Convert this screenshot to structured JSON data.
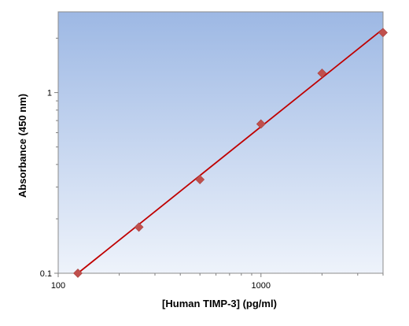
{
  "chart_data": {
    "type": "scatter",
    "title": "",
    "xlabel": "[Human TIMP-3] (pg/ml)",
    "ylabel": "Absorbance (450 nm)",
    "x_scale": "log",
    "y_scale": "log",
    "xlim": [
      100,
      4000
    ],
    "ylim": [
      0.1,
      2.8
    ],
    "x_ticks": [
      {
        "value": 100,
        "label": "100"
      },
      {
        "value": 1000,
        "label": "1000"
      }
    ],
    "y_ticks": [
      {
        "value": 0.1,
        "label": "0.1"
      },
      {
        "value": 1,
        "label": "1"
      }
    ],
    "grid": false,
    "legend": "none",
    "series": [
      {
        "marker": "diamond",
        "color": "#c0504d",
        "x": [
          125,
          250,
          500,
          1000,
          2000,
          4000
        ],
        "y": [
          0.1,
          0.18,
          0.33,
          0.67,
          1.28,
          2.15
        ]
      }
    ],
    "fit_line": {
      "color": "#c00000",
      "x": [
        125,
        4000
      ],
      "y": [
        0.1,
        2.25
      ]
    },
    "plot_background": {
      "top": "#9db8e4",
      "bottom": "#eef3fb"
    }
  }
}
